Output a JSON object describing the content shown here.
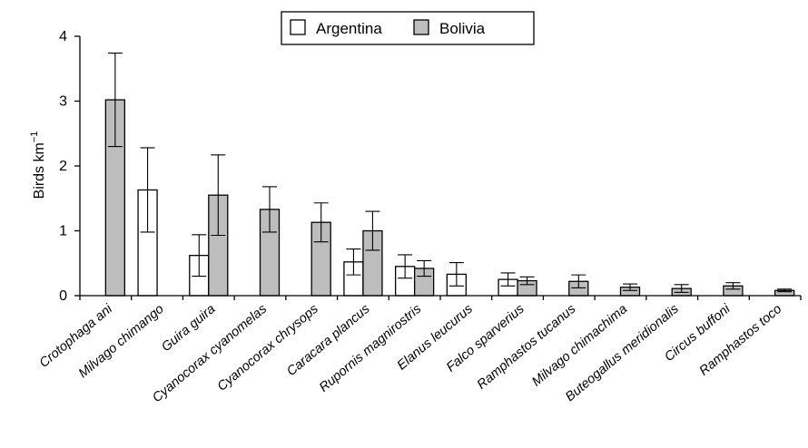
{
  "chart_data": {
    "type": "bar",
    "ylabel": "Birds km",
    "ylabel_superscript": "−1",
    "ylim": [
      0,
      4
    ],
    "yticks": [
      "0",
      "1",
      "2",
      "3",
      "4"
    ],
    "legend_position": "top-center",
    "categories": [
      "Crotophaga ani",
      "Milvago chimango",
      "Guira guira",
      "Cyanocorax cyanomelas",
      "Cyanocorax chrysops",
      "Caracara plancus",
      "Rupornis magnirostris",
      "Elanus leucurus",
      "Falco sparverius",
      "Ramphastos tucanus",
      "Milvago chimachima",
      "Buteogallus meridionalis",
      "Circus buffoni",
      "Ramphastos toco"
    ],
    "series": [
      {
        "name": "Argentina",
        "color": "#ffffff",
        "values": [
          null,
          1.63,
          0.62,
          null,
          null,
          0.52,
          0.45,
          0.33,
          0.25,
          null,
          null,
          null,
          null,
          null
        ],
        "errors": [
          null,
          0.65,
          0.32,
          null,
          null,
          0.2,
          0.18,
          0.18,
          0.1,
          null,
          null,
          null,
          null,
          null
        ]
      },
      {
        "name": "Bolivia",
        "color": "#bdbdbd",
        "values": [
          3.02,
          null,
          1.55,
          1.33,
          1.13,
          1.0,
          0.42,
          null,
          0.23,
          0.22,
          0.13,
          0.11,
          0.15,
          0.08
        ],
        "errors": [
          0.72,
          null,
          0.62,
          0.35,
          0.3,
          0.3,
          0.12,
          null,
          0.06,
          0.1,
          0.05,
          0.06,
          0.05,
          0.02
        ]
      }
    ]
  }
}
